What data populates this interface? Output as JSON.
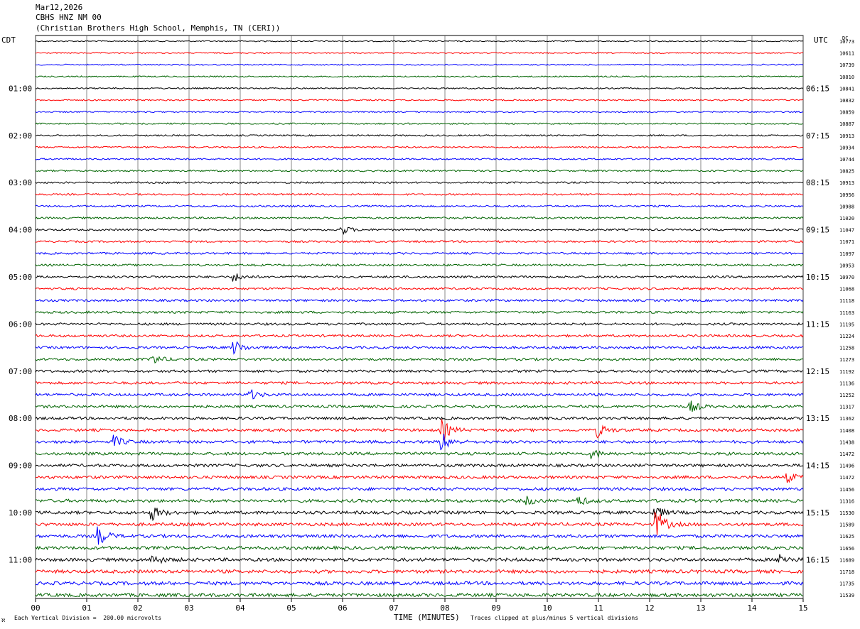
{
  "header": {
    "date": "Mar12,2026",
    "station": "CBHS HNZ NM 00",
    "location": "(Christian Brothers High School, Memphis, TN (CERI))"
  },
  "left_axis_title": "CDT",
  "right_axis_title": "UTC",
  "dc_title": "DC",
  "footer": {
    "corner": "ℵ",
    "scale": "Each Vertical Division =  200.00 microvolts",
    "clip": "Traces clipped at plus/minus 5 vertical divisions"
  },
  "chart_data": {
    "type": "line",
    "title": "",
    "xlabel": "TIME (MINUTES)",
    "x_ticks": [
      "00",
      "01",
      "02",
      "03",
      "04",
      "05",
      "06",
      "07",
      "08",
      "09",
      "10",
      "11",
      "12",
      "13",
      "14",
      "15"
    ],
    "xlim": [
      0,
      15
    ],
    "left_time_labels": [
      "01:00",
      "02:00",
      "03:00",
      "04:00",
      "05:00",
      "06:00",
      "07:00",
      "08:00",
      "09:00",
      "10:00",
      "11:00"
    ],
    "right_time_labels": [
      "06:15",
      "07:15",
      "08:15",
      "09:15",
      "10:15",
      "11:15",
      "12:15",
      "13:15",
      "14:15",
      "15:15",
      "16:15"
    ],
    "trace_colors": [
      "#000000",
      "#ff0000",
      "#0000ff",
      "#006400"
    ],
    "dc_offsets": [
      10773,
      10611,
      10739,
      10810,
      10841,
      10832,
      10859,
      10887,
      10913,
      10934,
      10744,
      10825,
      10913,
      10956,
      10988,
      11020,
      11047,
      11071,
      11097,
      10953,
      10970,
      11068,
      11118,
      11163,
      11195,
      11224,
      11258,
      11273,
      11192,
      11136,
      11252,
      11317,
      11362,
      11408,
      11438,
      11472,
      11496,
      11472,
      11456,
      11316,
      11530,
      11589,
      11625,
      11656,
      11689,
      11718,
      11735,
      11539
    ],
    "events": [
      {
        "trace": 16,
        "minute": 6.0,
        "amp": 6
      },
      {
        "trace": 20,
        "minute": 3.9,
        "amp": 6
      },
      {
        "trace": 26,
        "minute": 3.9,
        "amp": 9
      },
      {
        "trace": 27,
        "minute": 2.3,
        "amp": 7
      },
      {
        "trace": 30,
        "minute": 4.2,
        "amp": 7
      },
      {
        "trace": 31,
        "minute": 12.8,
        "amp": 8
      },
      {
        "trace": 33,
        "minute": 7.95,
        "amp": 14
      },
      {
        "trace": 33,
        "minute": 11.0,
        "amp": 9
      },
      {
        "trace": 34,
        "minute": 1.55,
        "amp": 8
      },
      {
        "trace": 34,
        "minute": 7.95,
        "amp": 13
      },
      {
        "trace": 35,
        "minute": 10.9,
        "amp": 6
      },
      {
        "trace": 39,
        "minute": 9.6,
        "amp": 6
      },
      {
        "trace": 39,
        "minute": 10.6,
        "amp": 7
      },
      {
        "trace": 40,
        "minute": 2.3,
        "amp": 9
      },
      {
        "trace": 40,
        "minute": 12.1,
        "amp": 10
      },
      {
        "trace": 41,
        "minute": 12.15,
        "amp": 18
      },
      {
        "trace": 42,
        "minute": 1.25,
        "amp": 12
      },
      {
        "trace": 44,
        "minute": 2.3,
        "amp": 7
      },
      {
        "trace": 44,
        "minute": 14.55,
        "amp": 8
      },
      {
        "trace": 37,
        "minute": 14.7,
        "amp": 6
      }
    ]
  }
}
